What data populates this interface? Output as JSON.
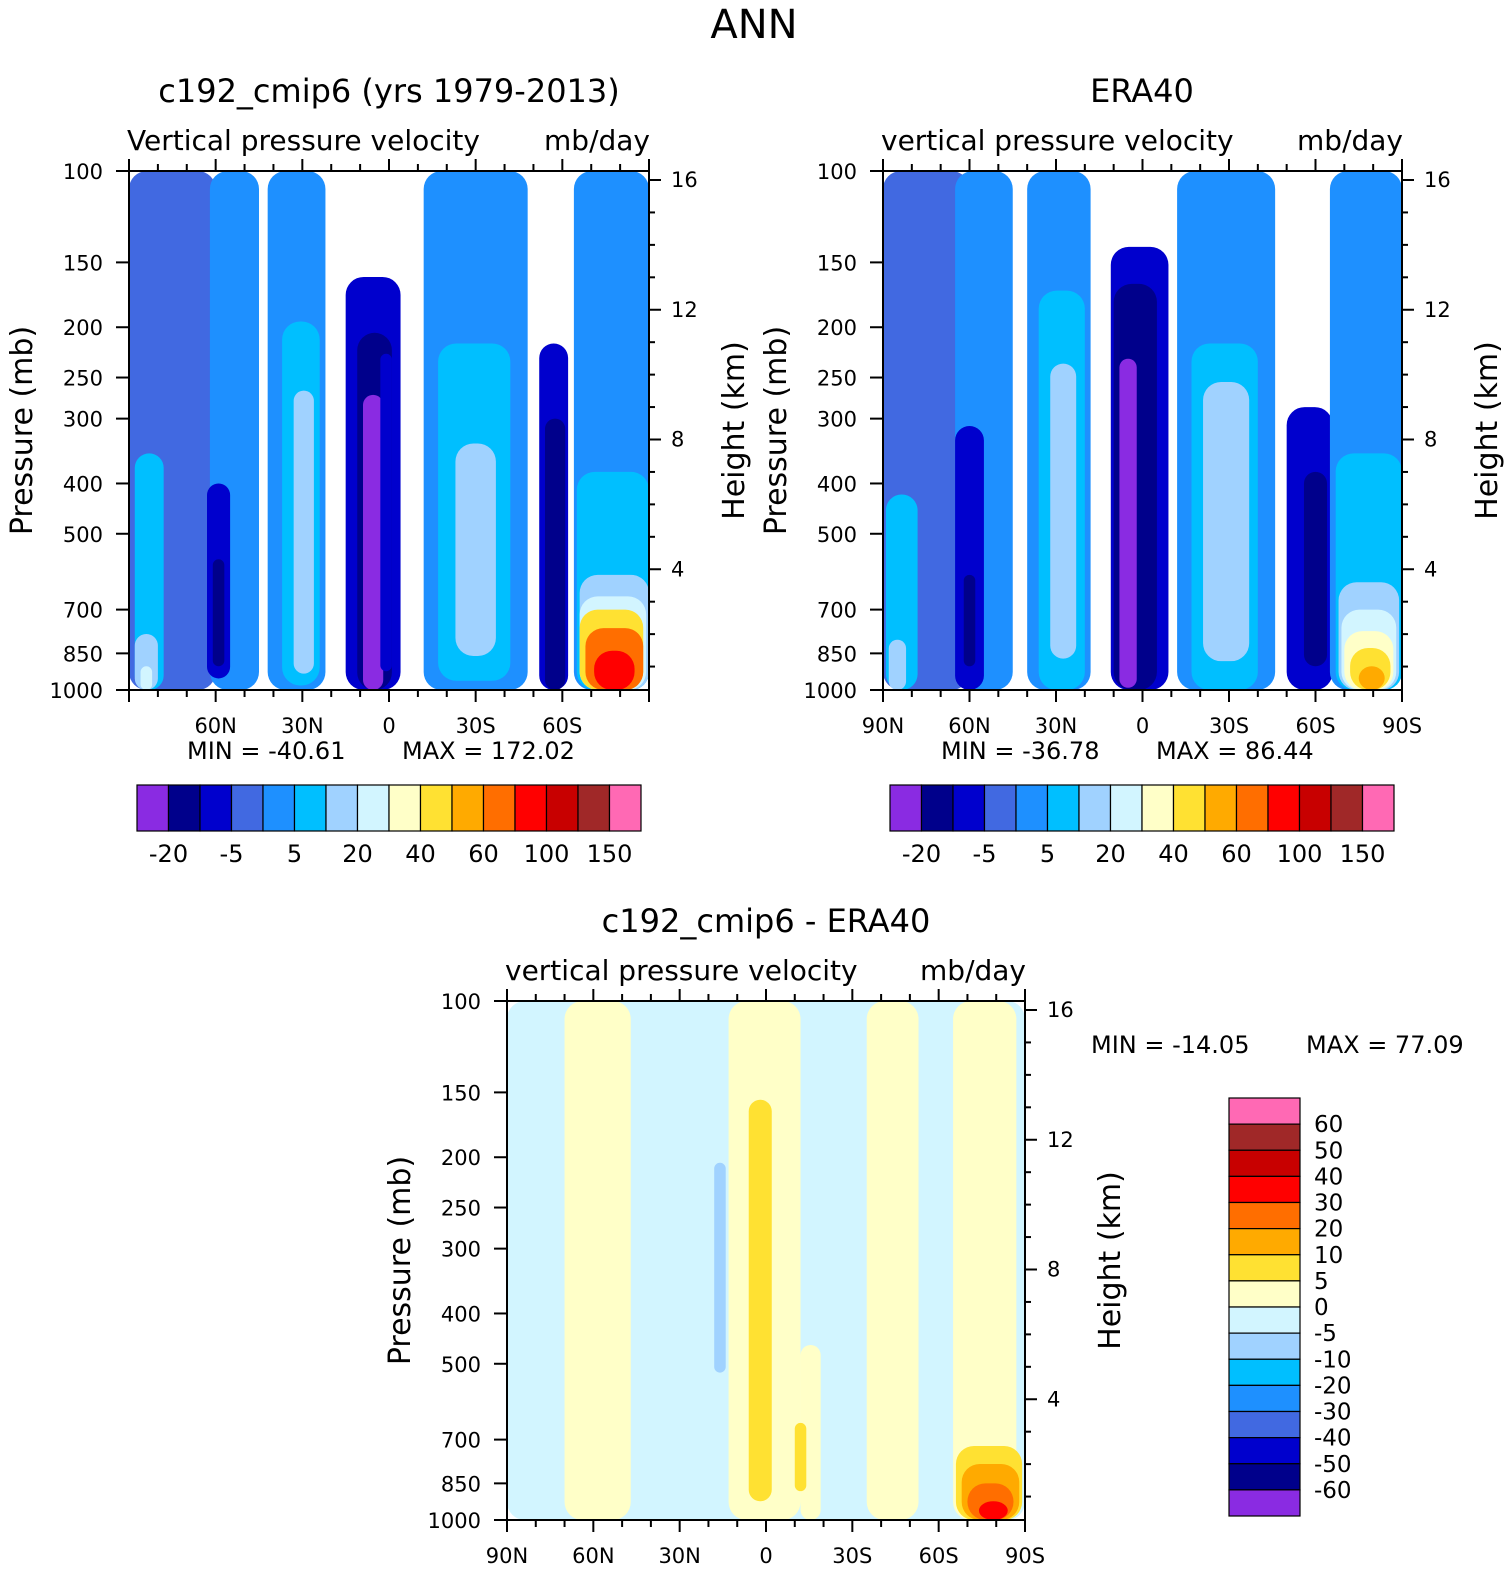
{
  "figure_title": "ANN",
  "colors": {
    "mean_palette": [
      "#8a2be2",
      "#00008b",
      "#0000cd",
      "#4169e1",
      "#1e90ff",
      "#00bfff",
      "#a0d2ff",
      "#d2f5ff",
      "#ffffc8",
      "#ffe132",
      "#ffaa00",
      "#ff6e00",
      "#ff0000",
      "#c80000",
      "#a02828",
      "#ff69b4"
    ],
    "diff_palette": [
      "#8a2be2",
      "#00008b",
      "#0000cd",
      "#4169e1",
      "#1e90ff",
      "#00bfff",
      "#a0d2ff",
      "#d2f5ff",
      "#ffffc8",
      "#ffe132",
      "#ffaa00",
      "#ff6e00",
      "#ff0000",
      "#c80000",
      "#a02828",
      "#ff69b4"
    ]
  },
  "chart_data": [
    {
      "type": "contour",
      "id": "model",
      "title": "c192_cmip6 (yrs 1979-2013)",
      "subtitle_left": "Vertical pressure velocity",
      "subtitle_right": "mb/day",
      "ylabel": "Pressure (mb)",
      "ylabel_right": "Height (km)",
      "y_ticks": [
        "100",
        "150",
        "200",
        "250",
        "300",
        "400",
        "500",
        "700",
        "850",
        "1000"
      ],
      "y_tick_values": [
        100,
        150,
        200,
        250,
        300,
        400,
        500,
        700,
        850,
        1000
      ],
      "right_ticks": [
        "16",
        "12",
        "8",
        "4"
      ],
      "right_tick_values": [
        16,
        12,
        8,
        4
      ],
      "x_ticks": [
        "60N",
        "30N",
        "0",
        "30S",
        "60S"
      ],
      "x_tick_values": [
        60,
        30,
        0,
        -30,
        -60
      ],
      "xlim": [
        90,
        -90
      ],
      "ylim": [
        100,
        1000
      ],
      "min_label": "MIN = -40.61",
      "max_label": "MAX = 172.02",
      "min": -40.61,
      "max": 172.02,
      "colorbar_labels": [
        "-20",
        "-5",
        "5",
        "20",
        "40",
        "60",
        "100",
        "150"
      ],
      "regions": [
        {
          "lat": [
            90,
            60
          ],
          "p": [
            100,
            1000
          ],
          "level": 3
        },
        {
          "lat": [
            62,
            45
          ],
          "p": [
            100,
            1000
          ],
          "level": 4
        },
        {
          "lat": [
            88,
            78
          ],
          "p": [
            350,
            1000
          ],
          "level": 5
        },
        {
          "lat": [
            88,
            80
          ],
          "p": [
            780,
            1000
          ],
          "level": 6
        },
        {
          "lat": [
            86,
            82
          ],
          "p": [
            900,
            1000
          ],
          "level": 7
        },
        {
          "lat": [
            63,
            55
          ],
          "p": [
            400,
            950
          ],
          "level": 2
        },
        {
          "lat": [
            61,
            57
          ],
          "p": [
            560,
            900
          ],
          "level": 1
        },
        {
          "lat": [
            42,
            22
          ],
          "p": [
            100,
            1000
          ],
          "level": 4
        },
        {
          "lat": [
            37,
            24
          ],
          "p": [
            195,
            980
          ],
          "level": 5
        },
        {
          "lat": [
            33,
            26
          ],
          "p": [
            265,
            930
          ],
          "level": 6
        },
        {
          "lat": [
            15,
            -4
          ],
          "p": [
            160,
            1000
          ],
          "level": 2
        },
        {
          "lat": [
            11,
            -1
          ],
          "p": [
            205,
            1000
          ],
          "level": 1
        },
        {
          "lat": [
            9,
            2
          ],
          "p": [
            270,
            1000
          ],
          "level": 0
        },
        {
          "lat": [
            3,
            -1
          ],
          "p": [
            225,
            920
          ],
          "level": 2
        },
        {
          "lat": [
            -12,
            -48
          ],
          "p": [
            100,
            1000
          ],
          "level": 4
        },
        {
          "lat": [
            -17,
            -42
          ],
          "p": [
            215,
            960
          ],
          "level": 5
        },
        {
          "lat": [
            -23,
            -37
          ],
          "p": [
            335,
            860
          ],
          "level": 6
        },
        {
          "lat": [
            -52,
            -62
          ],
          "p": [
            215,
            1000
          ],
          "level": 2
        },
        {
          "lat": [
            -54,
            -61
          ],
          "p": [
            300,
            1000
          ],
          "level": 1
        },
        {
          "lat": [
            -64,
            -90
          ],
          "p": [
            100,
            1000
          ],
          "level": 4
        },
        {
          "lat": [
            -65,
            -90
          ],
          "p": [
            380,
            1000
          ],
          "level": 5
        },
        {
          "lat": [
            -66,
            -90
          ],
          "p": [
            600,
            1000
          ],
          "level": 6
        },
        {
          "lat": [
            -66,
            -89
          ],
          "p": [
            660,
            1000
          ],
          "level": 7
        },
        {
          "lat": [
            -66,
            -88
          ],
          "p": [
            700,
            1000
          ],
          "level": 9
        },
        {
          "lat": [
            -68,
            -88
          ],
          "p": [
            760,
            1000
          ],
          "level": 11
        },
        {
          "lat": [
            -71,
            -85
          ],
          "p": [
            840,
            1000
          ],
          "level": 12
        }
      ]
    },
    {
      "type": "contour",
      "id": "obs",
      "title": "ERA40",
      "subtitle_left": "vertical pressure velocity",
      "subtitle_right": "mb/day",
      "ylabel": "Pressure (mb)",
      "ylabel_right": "Height (km)",
      "y_ticks": [
        "100",
        "150",
        "200",
        "250",
        "300",
        "400",
        "500",
        "700",
        "850",
        "1000"
      ],
      "y_tick_values": [
        100,
        150,
        200,
        250,
        300,
        400,
        500,
        700,
        850,
        1000
      ],
      "right_ticks": [
        "16",
        "12",
        "8",
        "4"
      ],
      "right_tick_values": [
        16,
        12,
        8,
        4
      ],
      "x_ticks": [
        "90N",
        "60N",
        "30N",
        "0",
        "30S",
        "60S",
        "90S"
      ],
      "x_tick_values": [
        90,
        60,
        30,
        0,
        -30,
        -60,
        -90
      ],
      "xlim": [
        90,
        -90
      ],
      "ylim": [
        100,
        1000
      ],
      "min_label": "MIN = -36.78",
      "max_label": "MAX = 86.44",
      "min": -36.78,
      "max": 86.44,
      "colorbar_labels": [
        "-20",
        "-5",
        "5",
        "20",
        "40",
        "60",
        "100",
        "150"
      ],
      "regions": [
        {
          "lat": [
            90,
            60
          ],
          "p": [
            100,
            1000
          ],
          "level": 3
        },
        {
          "lat": [
            65,
            45
          ],
          "p": [
            100,
            1000
          ],
          "level": 4
        },
        {
          "lat": [
            89,
            78
          ],
          "p": [
            420,
            1000
          ],
          "level": 5
        },
        {
          "lat": [
            88,
            82
          ],
          "p": [
            800,
            1000
          ],
          "level": 6
        },
        {
          "lat": [
            65,
            55
          ],
          "p": [
            310,
            1000
          ],
          "level": 2
        },
        {
          "lat": [
            62,
            58
          ],
          "p": [
            600,
            900
          ],
          "level": 1
        },
        {
          "lat": [
            40,
            18
          ],
          "p": [
            100,
            1000
          ],
          "level": 4
        },
        {
          "lat": [
            36,
            20
          ],
          "p": [
            170,
            1000
          ],
          "level": 5
        },
        {
          "lat": [
            32,
            23
          ],
          "p": [
            235,
            870
          ],
          "level": 6
        },
        {
          "lat": [
            11,
            -9
          ],
          "p": [
            140,
            1000
          ],
          "level": 2
        },
        {
          "lat": [
            10,
            -5
          ],
          "p": [
            165,
            1000
          ],
          "level": 1
        },
        {
          "lat": [
            8,
            2
          ],
          "p": [
            230,
            990
          ],
          "level": 0
        },
        {
          "lat": [
            -12,
            -46
          ],
          "p": [
            100,
            1000
          ],
          "level": 4
        },
        {
          "lat": [
            -17,
            -40
          ],
          "p": [
            215,
            1000
          ],
          "level": 5
        },
        {
          "lat": [
            -21,
            -37
          ],
          "p": [
            255,
            880
          ],
          "level": 6
        },
        {
          "lat": [
            -50,
            -66
          ],
          "p": [
            285,
            1000
          ],
          "level": 2
        },
        {
          "lat": [
            -56,
            -64
          ],
          "p": [
            380,
            900
          ],
          "level": 1
        },
        {
          "lat": [
            -65,
            -90
          ],
          "p": [
            100,
            1000
          ],
          "level": 4
        },
        {
          "lat": [
            -67,
            -90
          ],
          "p": [
            350,
            1000
          ],
          "level": 5
        },
        {
          "lat": [
            -68,
            -89
          ],
          "p": [
            620,
            1000
          ],
          "level": 6
        },
        {
          "lat": [
            -69,
            -88
          ],
          "p": [
            700,
            1000
          ],
          "level": 7
        },
        {
          "lat": [
            -70,
            -87
          ],
          "p": [
            770,
            1000
          ],
          "level": 8
        },
        {
          "lat": [
            -72,
            -86
          ],
          "p": [
            830,
            1000
          ],
          "level": 9
        },
        {
          "lat": [
            -75,
            -84
          ],
          "p": [
            900,
            1000
          ],
          "level": 10
        }
      ]
    },
    {
      "type": "contour",
      "id": "diff",
      "title": "c192_cmip6 - ERA40",
      "subtitle_left": "vertical pressure velocity",
      "subtitle_right": "mb/day",
      "ylabel": "Pressure (mb)",
      "ylabel_right": "Height (km)",
      "y_ticks": [
        "100",
        "150",
        "200",
        "250",
        "300",
        "400",
        "500",
        "700",
        "850",
        "1000"
      ],
      "y_tick_values": [
        100,
        150,
        200,
        250,
        300,
        400,
        500,
        700,
        850,
        1000
      ],
      "right_ticks": [
        "16",
        "12",
        "8",
        "4"
      ],
      "right_tick_values": [
        16,
        12,
        8,
        4
      ],
      "x_ticks": [
        "90N",
        "60N",
        "30N",
        "0",
        "30S",
        "60S",
        "90S"
      ],
      "x_tick_values": [
        90,
        60,
        30,
        0,
        -30,
        -60,
        -90
      ],
      "xlim": [
        90,
        -90
      ],
      "ylim": [
        100,
        1000
      ],
      "min_label": "MIN = -14.05",
      "max_label": "MAX = 77.09",
      "min": -14.05,
      "max": 77.09,
      "colorbar_labels": [
        "60",
        "50",
        "40",
        "30",
        "20",
        "10",
        "5",
        "0",
        "-5",
        "-10",
        "-20",
        "-30",
        "-40",
        "-50",
        "-60"
      ],
      "regions": [
        {
          "lat": [
            90,
            -90
          ],
          "p": [
            100,
            1000
          ],
          "level": 7
        },
        {
          "lat": [
            70,
            47
          ],
          "p": [
            100,
            1000
          ],
          "level": 8
        },
        {
          "lat": [
            13,
            -12
          ],
          "p": [
            100,
            1000
          ],
          "level": 8
        },
        {
          "lat": [
            -35,
            -53
          ],
          "p": [
            100,
            1000
          ],
          "level": 8
        },
        {
          "lat": [
            -65,
            -87
          ],
          "p": [
            100,
            1000
          ],
          "level": 8
        },
        {
          "lat": [
            -12,
            -19
          ],
          "p": [
            460,
            1000
          ],
          "level": 8
        },
        {
          "lat": [
            6,
            -2
          ],
          "p": [
            155,
            920
          ],
          "level": 9
        },
        {
          "lat": [
            -10,
            -14
          ],
          "p": [
            650,
            880
          ],
          "level": 9
        },
        {
          "lat": [
            18,
            14
          ],
          "p": [
            205,
            520
          ],
          "level": 6
        },
        {
          "lat": [
            -66,
            -89
          ],
          "p": [
            720,
            1000
          ],
          "level": 9
        },
        {
          "lat": [
            -68,
            -88
          ],
          "p": [
            780,
            1000
          ],
          "level": 10
        },
        {
          "lat": [
            -70,
            -86
          ],
          "p": [
            850,
            1000
          ],
          "level": 11
        },
        {
          "lat": [
            -74,
            -84
          ],
          "p": [
            920,
            1000
          ],
          "level": 12
        }
      ]
    }
  ]
}
